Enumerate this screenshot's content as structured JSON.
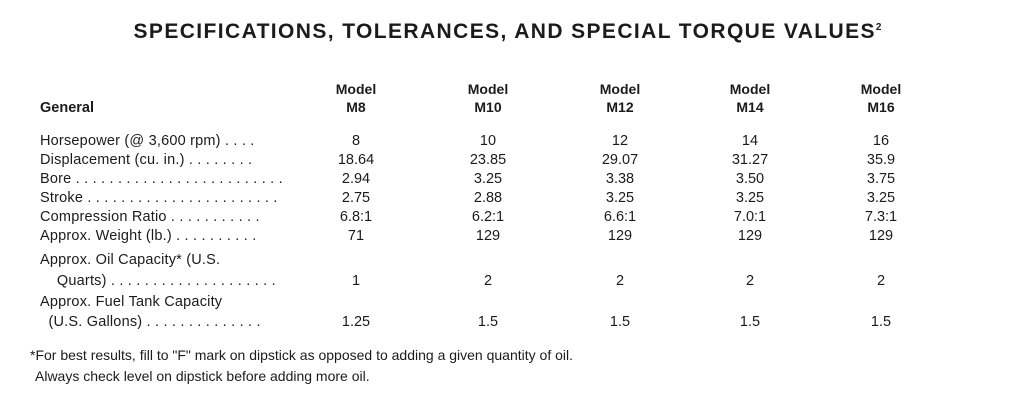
{
  "title": "SPECIFICATIONS, TOLERANCES, AND SPECIAL TORQUE VALUES",
  "title_sup": "2",
  "header": {
    "general": "General",
    "models": [
      {
        "line1": "Model",
        "line2": "M8"
      },
      {
        "line1": "Model",
        "line2": "M10"
      },
      {
        "line1": "Model",
        "line2": "M12"
      },
      {
        "line1": "Model",
        "line2": "M14"
      },
      {
        "line1": "Model",
        "line2": "M16"
      }
    ]
  },
  "rows": [
    {
      "label": "Horsepower (@ 3,600 rpm) . . . .",
      "values": [
        "8",
        "10",
        "12",
        "14",
        "16"
      ]
    },
    {
      "label": "Displacement (cu. in.) . . . . . . . .",
      "values": [
        "18.64",
        "23.85",
        "29.07",
        "31.27",
        "35.9"
      ]
    },
    {
      "label": "Bore . . . . . . . . . . . . . . . . . . . . . . . . .",
      "values": [
        "2.94",
        "3.25",
        "3.38",
        "3.50",
        "3.75"
      ]
    },
    {
      "label": "Stroke . . . . . . . . . . . . . . . . . . . . . . .",
      "values": [
        "2.75",
        "2.88",
        "3.25",
        "3.25",
        "3.25"
      ]
    },
    {
      "label": "Compression Ratio . . . . . . . . . . .",
      "values": [
        "6.8:1",
        "6.2:1",
        "6.6:1",
        "7.0:1",
        "7.3:1"
      ]
    },
    {
      "label": "Approx. Weight (lb.) . . . . . . . . . .",
      "values": [
        "71",
        "129",
        "129",
        "129",
        "129"
      ]
    },
    {
      "label": "Approx. Oil Capacity* (U.S.",
      "values": [
        "",
        "",
        "",
        "",
        ""
      ]
    },
    {
      "label": "    Quarts) . . . . . . . . . . . . . . . . . . . .",
      "values": [
        "1",
        "2",
        "2",
        "2",
        "2"
      ]
    },
    {
      "label": "Approx. Fuel Tank Capacity",
      "values": [
        "",
        "",
        "",
        "",
        ""
      ]
    },
    {
      "label": "  (U.S. Gallons) . . . . . . . . . . . . . .",
      "values": [
        "1.25",
        "1.5",
        "1.5",
        "1.5",
        "1.5"
      ]
    }
  ],
  "footnote": {
    "line1": "*For best results, fill to \"F\" mark on dipstick as opposed to adding a given quantity of oil.",
    "line2": "Always check level on dipstick before adding more oil."
  }
}
